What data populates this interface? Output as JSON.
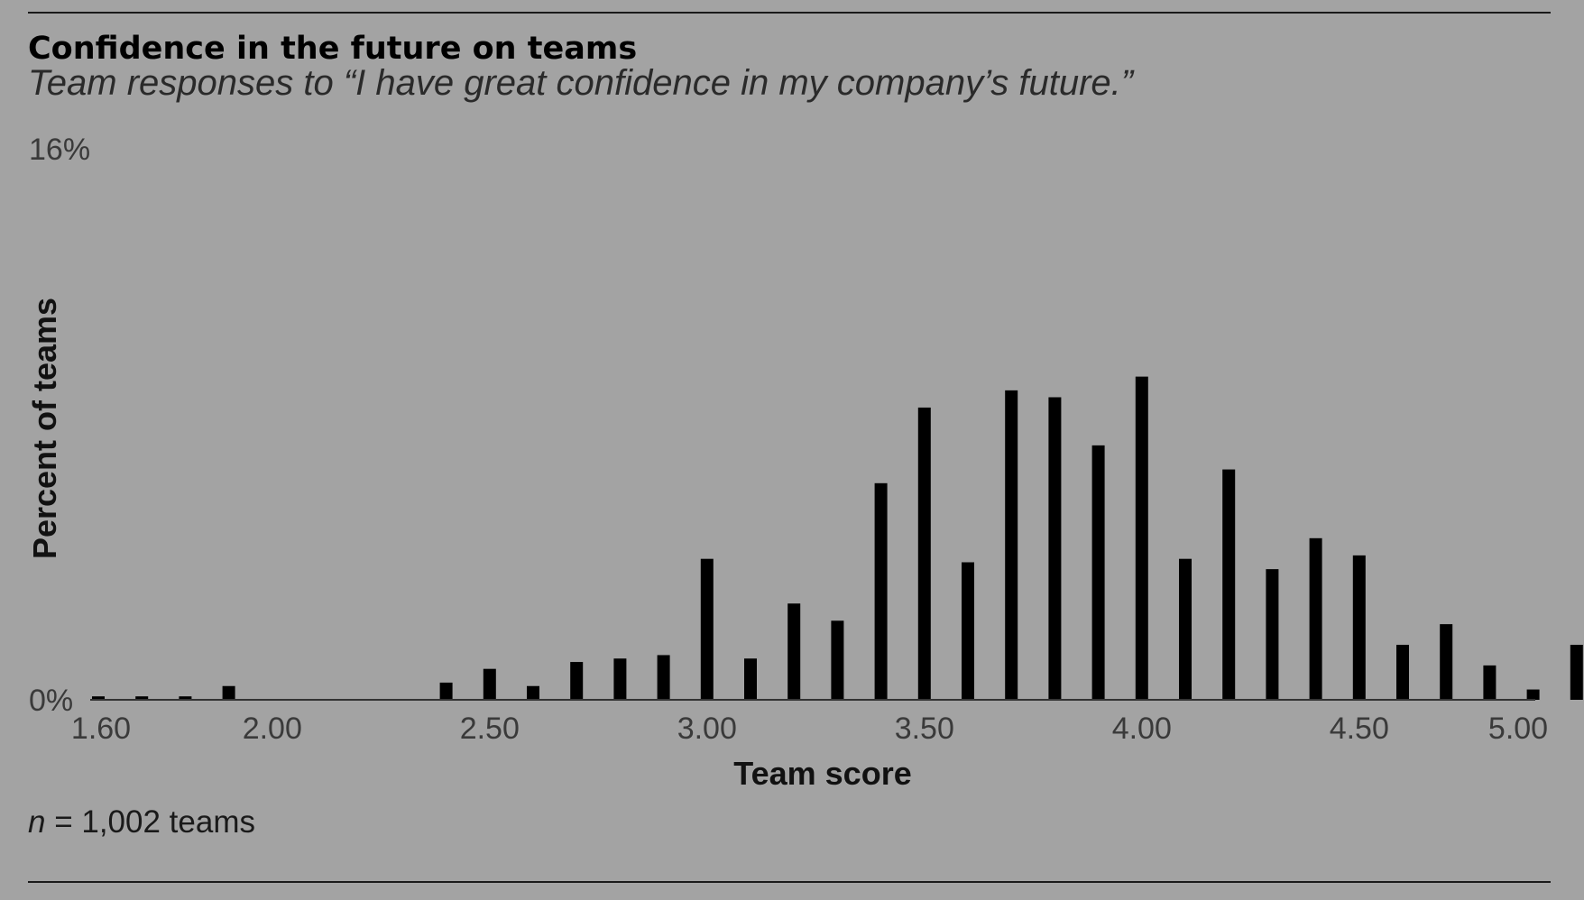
{
  "chart_data": {
    "type": "bar",
    "title": "Confidence in the future on teams",
    "subtitle": "Team responses to “I have great confidence in my company’s future.”",
    "xlabel": "Team score",
    "ylabel": "Percent of teams",
    "ylim": [
      0,
      16
    ],
    "y_ticks": [
      "0%",
      "16%"
    ],
    "x_ticks": [
      "1.60",
      "2.00",
      "2.50",
      "3.00",
      "3.50",
      "4.00",
      "4.50",
      "5.00"
    ],
    "x_tick_values": [
      1.6,
      2.0,
      2.5,
      3.0,
      3.5,
      4.0,
      4.5,
      5.0
    ],
    "x": [
      1.6,
      1.7,
      1.8,
      1.9,
      2.4,
      2.5,
      2.6,
      2.7,
      2.8,
      2.9,
      3.0,
      3.1,
      3.2,
      3.3,
      3.4,
      3.5,
      3.6,
      3.7,
      3.8,
      3.9,
      4.0,
      4.1,
      4.2,
      4.3,
      4.4,
      4.5,
      4.6,
      4.7,
      4.8,
      4.9,
      5.0
    ],
    "values": [
      0.1,
      0.1,
      0.1,
      0.4,
      0.5,
      0.9,
      0.4,
      1.1,
      1.2,
      1.3,
      4.1,
      1.2,
      2.8,
      2.3,
      6.3,
      8.5,
      4.0,
      9.0,
      8.8,
      7.4,
      9.4,
      4.1,
      6.7,
      3.8,
      4.7,
      4.2,
      1.6,
      2.2,
      1.0,
      0.3,
      1.6
    ],
    "grid": false,
    "legend": "none",
    "bar_color": "#000000",
    "axis_color": "#333333"
  },
  "note": {
    "n_symbol": "n",
    "text": " = 1,002 teams"
  }
}
